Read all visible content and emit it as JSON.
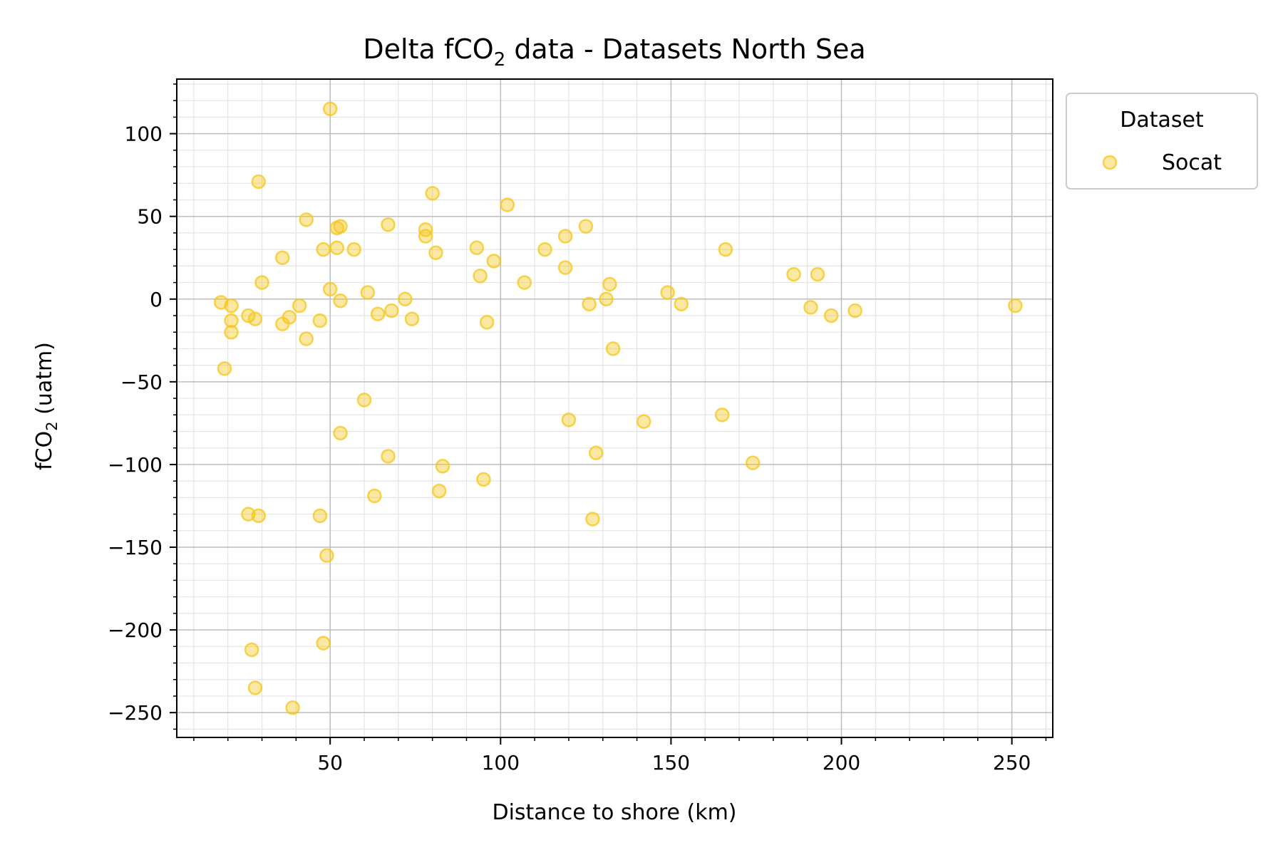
{
  "chart_data": {
    "type": "scatter",
    "title": {
      "main": "Delta fCO",
      "sub": "2",
      "rest": " data - Datasets North Sea"
    },
    "xlabel": "Distance to shore (km)",
    "ylabel": {
      "main": "fCO",
      "sub": "2",
      "rest": " (uatm)"
    },
    "xlim": [
      5,
      262
    ],
    "ylim": [
      -265,
      133
    ],
    "xticks": [
      50,
      100,
      150,
      200,
      250
    ],
    "xtick_labels": [
      "50",
      "100",
      "150",
      "200",
      "250"
    ],
    "yticks": [
      100,
      50,
      0,
      -50,
      -100,
      -150,
      -200,
      -250
    ],
    "ytick_labels": [
      "100",
      "50",
      "0",
      "−50",
      "−100",
      "−150",
      "−200",
      "−250"
    ],
    "grid": true,
    "legend": {
      "title": "Dataset",
      "placement": "outside-top-right"
    },
    "series": [
      {
        "name": "Socat",
        "color": "#f5c518",
        "points": [
          [
            18,
            -2
          ],
          [
            19,
            -42
          ],
          [
            21,
            -4
          ],
          [
            21,
            -13
          ],
          [
            21,
            -20
          ],
          [
            26,
            -10
          ],
          [
            28,
            -12
          ],
          [
            26,
            -130
          ],
          [
            29,
            -131
          ],
          [
            27,
            -212
          ],
          [
            28,
            -235
          ],
          [
            29,
            71
          ],
          [
            30,
            10
          ],
          [
            36,
            -15
          ],
          [
            36,
            25
          ],
          [
            38,
            -11
          ],
          [
            39,
            -247
          ],
          [
            41,
            -4
          ],
          [
            43,
            48
          ],
          [
            43,
            -24
          ],
          [
            47,
            -13
          ],
          [
            47,
            -131
          ],
          [
            48,
            30
          ],
          [
            48,
            -208
          ],
          [
            49,
            -155
          ],
          [
            50,
            115
          ],
          [
            50,
            6
          ],
          [
            52,
            31
          ],
          [
            52,
            43
          ],
          [
            53,
            44
          ],
          [
            53,
            -1
          ],
          [
            53,
            -81
          ],
          [
            57,
            30
          ],
          [
            60,
            -61
          ],
          [
            61,
            4
          ],
          [
            63,
            -119
          ],
          [
            64,
            -9
          ],
          [
            67,
            -95
          ],
          [
            67,
            45
          ],
          [
            68,
            -7
          ],
          [
            72,
            0
          ],
          [
            74,
            -12
          ],
          [
            78,
            42
          ],
          [
            78,
            38
          ],
          [
            80,
            64
          ],
          [
            81,
            28
          ],
          [
            82,
            -116
          ],
          [
            83,
            -101
          ],
          [
            93,
            31
          ],
          [
            94,
            14
          ],
          [
            95,
            -109
          ],
          [
            96,
            -14
          ],
          [
            98,
            23
          ],
          [
            102,
            57
          ],
          [
            107,
            10
          ],
          [
            113,
            30
          ],
          [
            119,
            19
          ],
          [
            119,
            38
          ],
          [
            120,
            -73
          ],
          [
            125,
            44
          ],
          [
            126,
            -3
          ],
          [
            127,
            -133
          ],
          [
            128,
            -93
          ],
          [
            131,
            0
          ],
          [
            132,
            9
          ],
          [
            133,
            -30
          ],
          [
            142,
            -74
          ],
          [
            149,
            4
          ],
          [
            153,
            -3
          ],
          [
            165,
            -70
          ],
          [
            166,
            30
          ],
          [
            174,
            -99
          ],
          [
            186,
            15
          ],
          [
            191,
            -5
          ],
          [
            193,
            15
          ],
          [
            197,
            -10
          ],
          [
            204,
            -7
          ],
          [
            251,
            -4
          ]
        ]
      }
    ]
  }
}
